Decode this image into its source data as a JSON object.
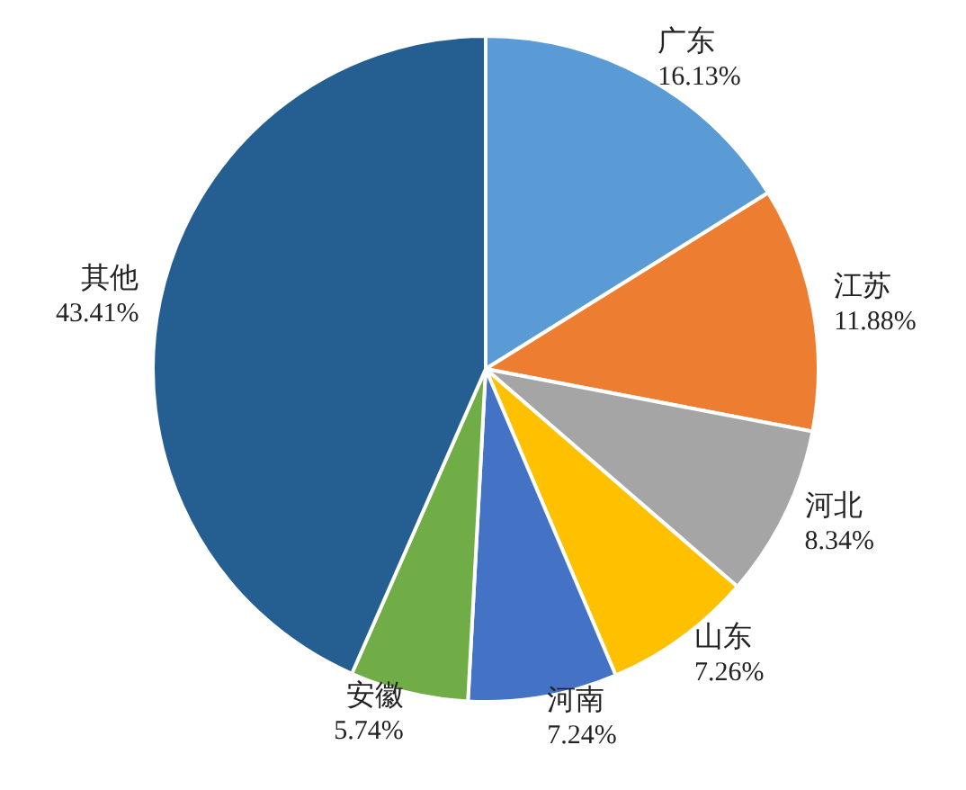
{
  "chart_data": {
    "type": "pie",
    "categories": [
      "广东",
      "江苏",
      "河北",
      "山东",
      "河南",
      "安徽",
      "其他"
    ],
    "values": [
      16.13,
      11.88,
      8.34,
      7.26,
      7.24,
      5.74,
      43.41
    ],
    "colors": [
      "#5b9bd5",
      "#ed7d31",
      "#a5a5a5",
      "#ffc000",
      "#4472c4",
      "#70ad47",
      "#255e91"
    ],
    "value_labels": [
      "16.13%",
      "11.88%",
      "8.34%",
      "7.26%",
      "7.24%",
      "5.74%",
      "43.41%"
    ]
  }
}
